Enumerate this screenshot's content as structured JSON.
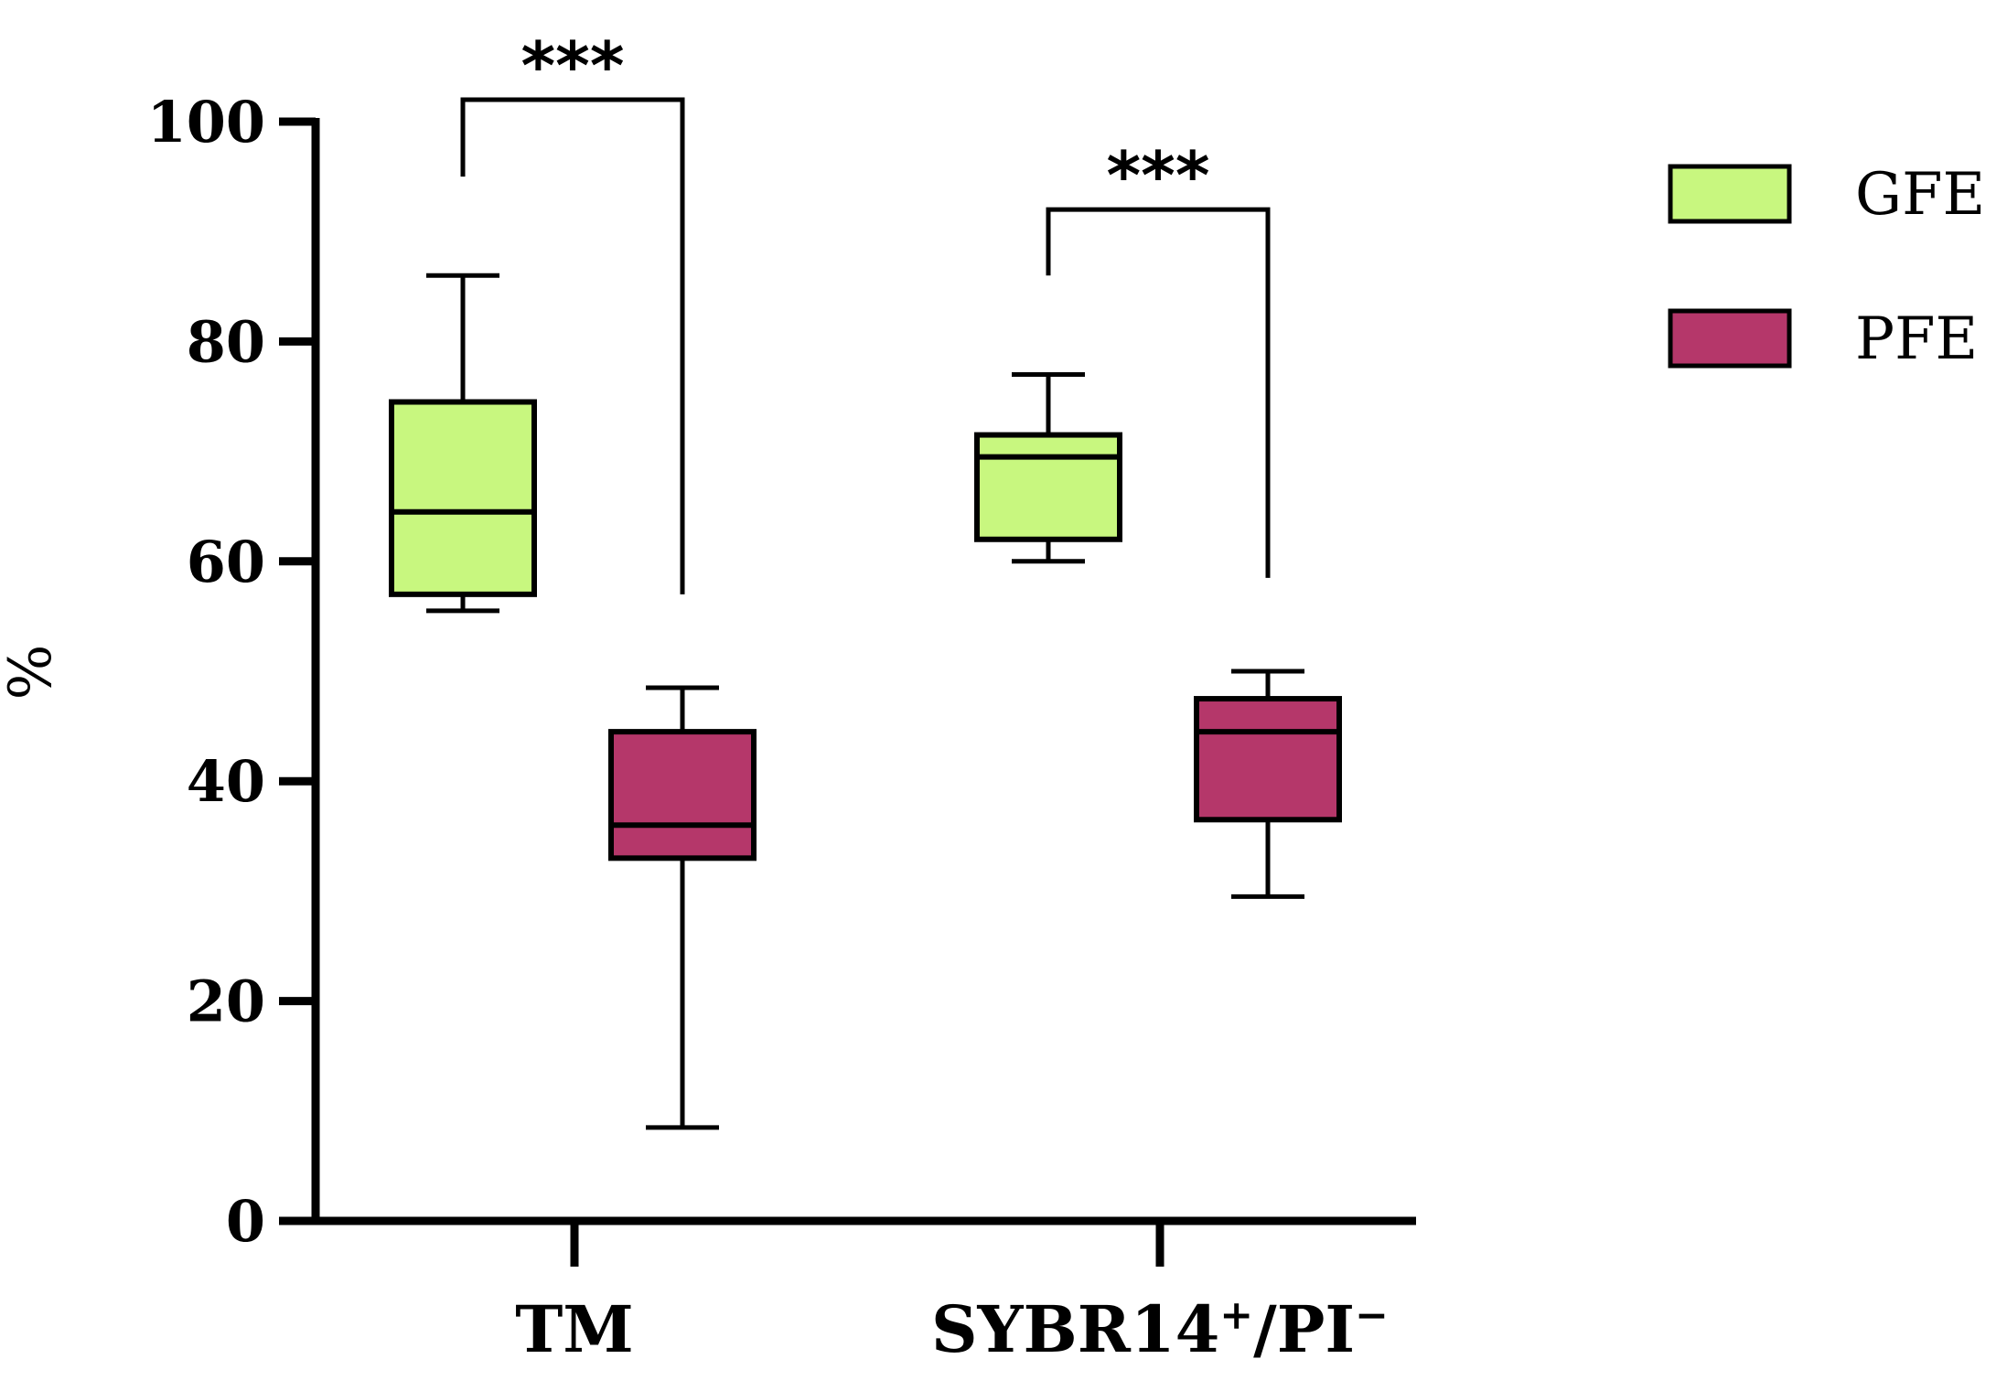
{
  "chart_data": {
    "type": "box",
    "title": "",
    "xlabel": "",
    "ylabel": "%",
    "ylim": [
      0,
      100
    ],
    "yticks": [
      "0",
      "20",
      "40",
      "60",
      "80",
      "100"
    ],
    "categories": [
      {
        "id": "tm",
        "label": "TM"
      },
      {
        "id": "sybr",
        "label": "SYBR14",
        "sup1": "+",
        "mid": "/PI",
        "sup2": "−"
      }
    ],
    "series": [
      {
        "name": "GFE",
        "color": "#c8f77f",
        "boxes": [
          {
            "min": 55.5,
            "q1": 57.0,
            "median": 64.5,
            "q3": 74.5,
            "max": 86.0
          },
          {
            "min": 60.0,
            "q1": 62.0,
            "median": 69.5,
            "q3": 71.5,
            "max": 77.0
          }
        ]
      },
      {
        "name": "PFE",
        "color": "#b5376a",
        "boxes": [
          {
            "min": 8.5,
            "q1": 33.0,
            "median": 36.0,
            "q3": 44.5,
            "max": 48.5
          },
          {
            "min": 29.5,
            "q1": 36.5,
            "median": 44.5,
            "q3": 47.5,
            "max": 50.0
          }
        ]
      }
    ],
    "significance": [
      {
        "category": "tm",
        "label": "***",
        "bracket_y": 102
      },
      {
        "category": "sybr",
        "label": "***",
        "bracket_y": 92
      }
    ],
    "legend": {
      "position": "top-right"
    }
  }
}
